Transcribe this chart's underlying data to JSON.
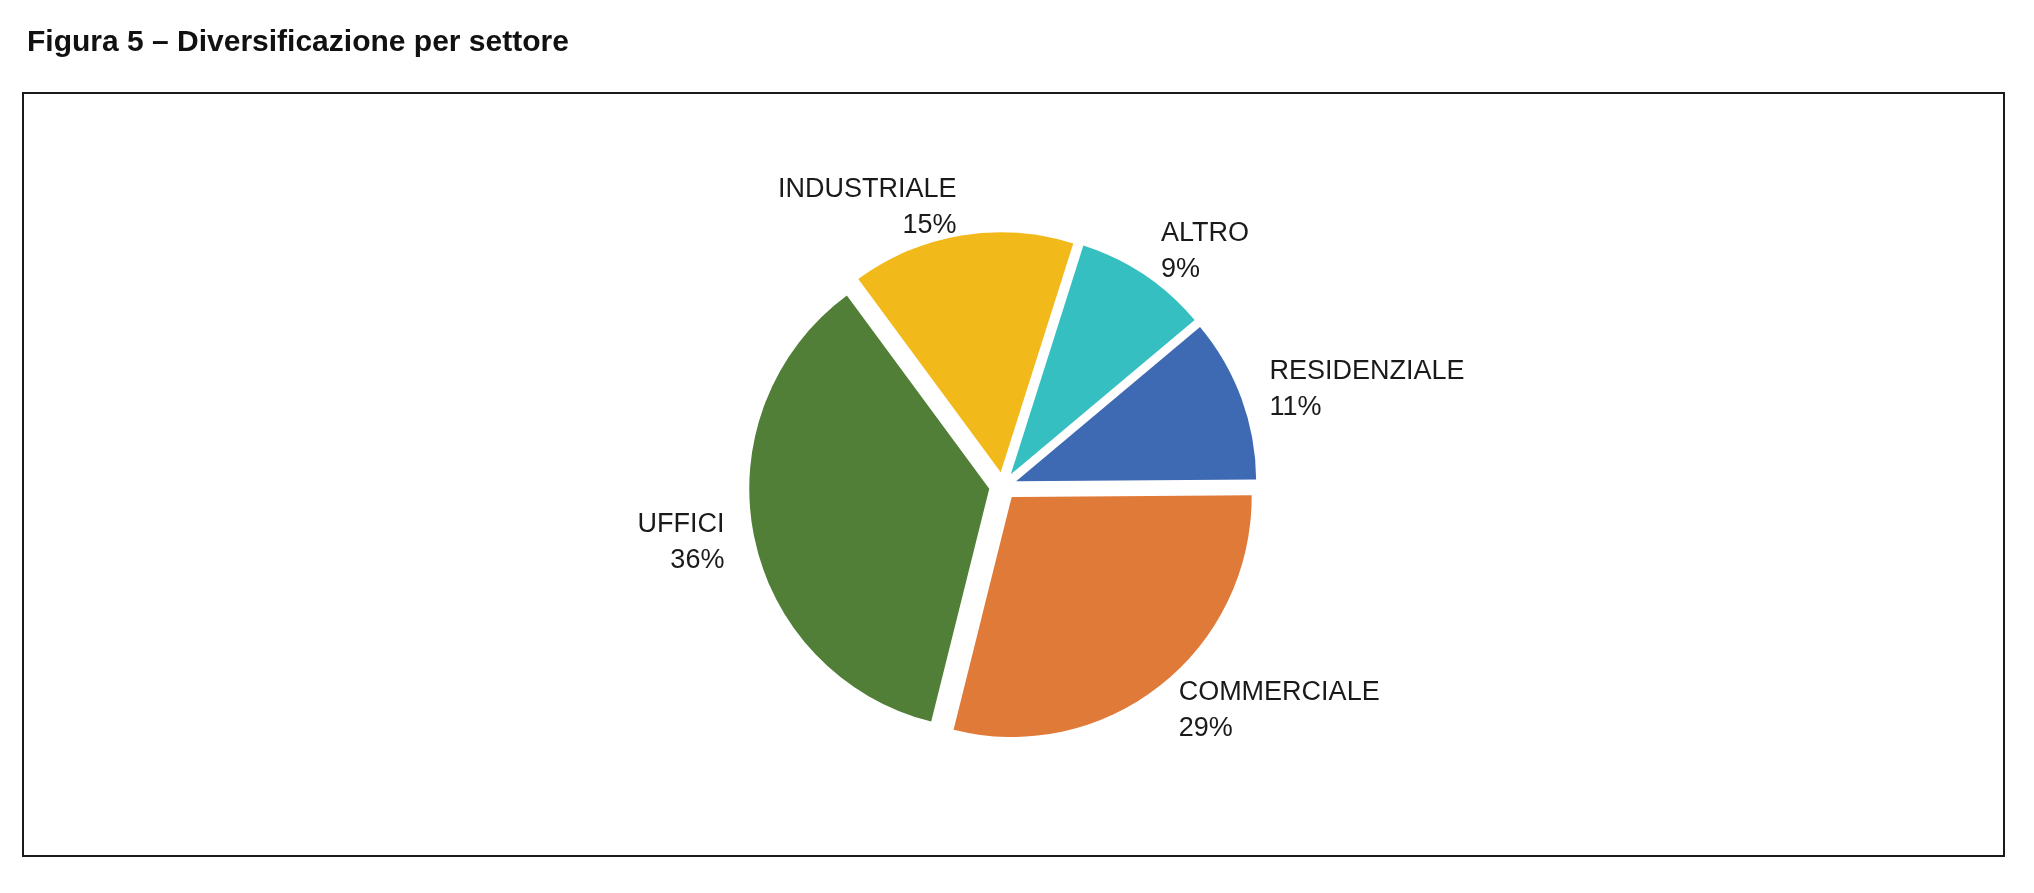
{
  "chart_data": {
    "type": "pie",
    "title": "Figura 5 – Diversificazione per settore",
    "categories": [
      "RESIDENZIALE",
      "COMMERCIALE",
      "UFFICI",
      "INDUSTRIALE",
      "ALTRO"
    ],
    "values": [
      11,
      29,
      36,
      15,
      9
    ],
    "value_labels": [
      "11%",
      "29%",
      "36%",
      "15%",
      "9%"
    ],
    "colors": [
      "#3e6ab4",
      "#e07a38",
      "#527f37",
      "#f2b91b",
      "#35bfc1"
    ],
    "legend": false
  }
}
